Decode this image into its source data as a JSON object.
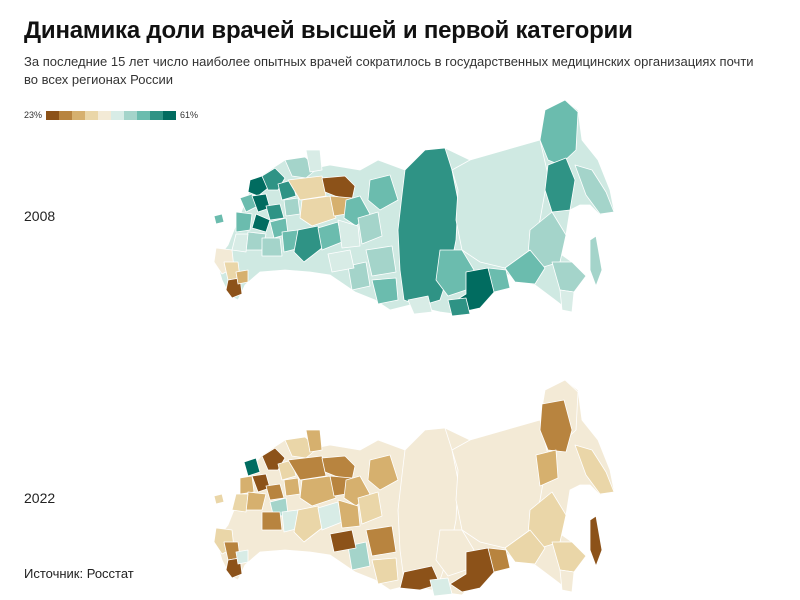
{
  "title": "Динамика доли врачей высшей и первой категории",
  "subtitle": "За последние 15 лет число наиболее опытных врачей сократилось в государственных медицинских организациях почти во всех регионах России",
  "legend": {
    "min_label": "23%",
    "max_label": "61%",
    "scale_colors": [
      "#8c5219",
      "#b8843f",
      "#d6b06e",
      "#ead6a8",
      "#f3ead6",
      "#d8ece6",
      "#a4d4ca",
      "#6bbcae",
      "#2f9385",
      "#016c60"
    ]
  },
  "maps": [
    {
      "year": "2008"
    },
    {
      "year": "2022"
    }
  ],
  "source": "Источник: Росстат"
}
